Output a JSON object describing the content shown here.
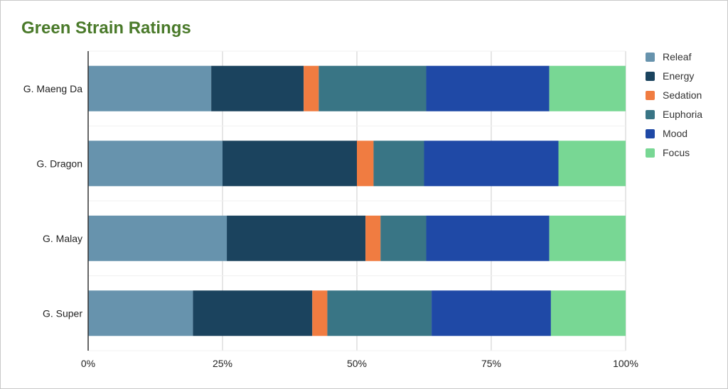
{
  "chart_data": {
    "type": "bar",
    "orientation": "horizontal",
    "stacked": "percent",
    "title": "Green Strain Ratings",
    "categories": [
      "G. Maeng Da",
      "G. Dragon",
      "G. Malay",
      "G. Super"
    ],
    "series": [
      {
        "name": "Releaf",
        "color": "#6793ad",
        "values": [
          22.9,
          25.0,
          25.8,
          19.5
        ]
      },
      {
        "name": "Energy",
        "color": "#1b435e",
        "values": [
          17.2,
          25.0,
          25.8,
          22.2
        ]
      },
      {
        "name": "Sedation",
        "color": "#f07c41",
        "values": [
          2.8,
          3.1,
          2.8,
          2.8
        ]
      },
      {
        "name": "Euphoria",
        "color": "#397585",
        "values": [
          20.0,
          9.4,
          8.5,
          19.4
        ]
      },
      {
        "name": "Mood",
        "color": "#1f49a6",
        "values": [
          22.9,
          25.0,
          22.9,
          22.2
        ]
      },
      {
        "name": "Focus",
        "color": "#78d794",
        "values": [
          14.2,
          12.5,
          14.2,
          13.9
        ]
      }
    ],
    "xticks": [
      "0%",
      "25%",
      "50%",
      "75%",
      "100%"
    ],
    "xlim": [
      0,
      100
    ],
    "grid": true,
    "legend": "right"
  }
}
